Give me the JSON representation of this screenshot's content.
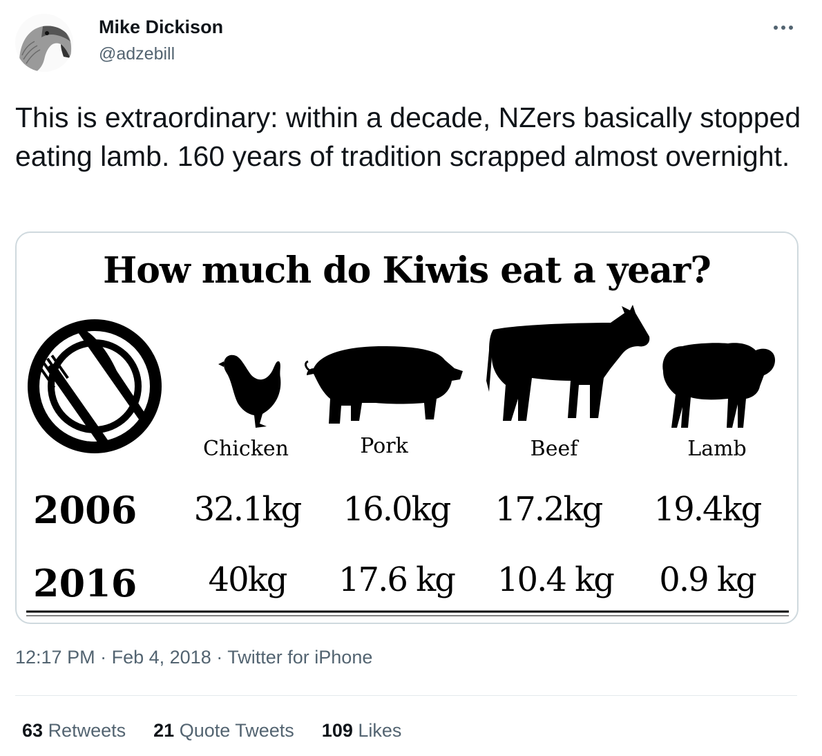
{
  "author": {
    "name": "Mike Dickison",
    "handle": "@adzebill",
    "avatar_icon": "bird-head-icon"
  },
  "tweet": {
    "text": "This is extraordinary: within a decade, NZers basically stopped eating lamb. 160 years of tradition scrapped almost overnight."
  },
  "infographic": {
    "title": "How much do Kiwis eat a year?",
    "icons": [
      "plate-cutlery-icon",
      "chicken-icon",
      "pig-icon",
      "cow-icon",
      "sheep-icon"
    ],
    "columns": [
      "Chicken",
      "Pork",
      "Beef",
      "Lamb"
    ],
    "rows": [
      {
        "year": "2006",
        "values": [
          "32.1kg",
          "16.0kg",
          "17.2kg",
          "19.4kg"
        ]
      },
      {
        "year": "2016",
        "values": [
          "40kg",
          "17.6 kg",
          "10.4 kg",
          "0.9 kg"
        ]
      }
    ]
  },
  "meta": {
    "time": "12:17 PM",
    "sep1": "·",
    "date": "Feb 4, 2018",
    "sep2": "·",
    "source": "Twitter for iPhone"
  },
  "stats": {
    "retweets_count": "63",
    "retweets_label": "Retweets",
    "quotes_count": "21",
    "quotes_label": "Quote Tweets",
    "likes_count": "109",
    "likes_label": "Likes"
  },
  "colors": {
    "text": "#0f1419",
    "secondary": "#536471",
    "border": "#cfd9de"
  }
}
